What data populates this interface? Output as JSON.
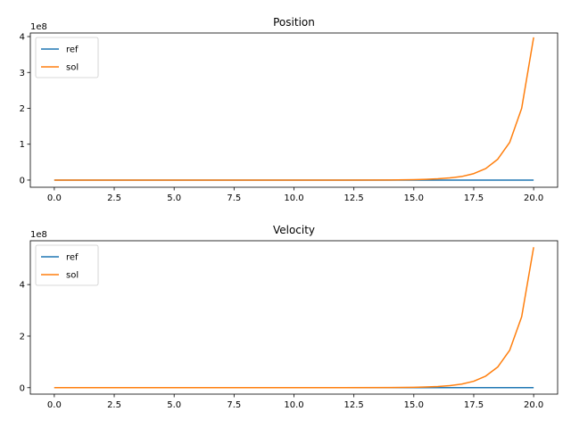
{
  "chart_data": [
    {
      "type": "line",
      "title": "Position",
      "xlabel": "",
      "ylabel": "",
      "offset_text": "1e8",
      "xlim": [
        -1,
        21
      ],
      "ylim": [
        -0.2,
        4.1
      ],
      "xticks": [
        0,
        2.5,
        5,
        7.5,
        10,
        12.5,
        15,
        17.5,
        20
      ],
      "xtick_labels": [
        "0.0",
        "2.5",
        "5.0",
        "7.5",
        "10.0",
        "12.5",
        "15.0",
        "17.5",
        "20.0"
      ],
      "yticks": [
        0,
        1,
        2,
        3,
        4
      ],
      "ytick_labels": [
        "0",
        "1",
        "2",
        "3",
        "4"
      ],
      "grid": false,
      "legend_position": "upper-left",
      "series": [
        {
          "name": "ref",
          "color": "#1f77b4",
          "x": [
            0,
            2,
            4,
            6,
            8,
            10,
            12,
            14,
            15,
            16,
            17,
            18,
            19,
            20
          ],
          "y": [
            0,
            0,
            0,
            0,
            0,
            0,
            0,
            0,
            0,
            0,
            0,
            0,
            0,
            0
          ]
        },
        {
          "name": "sol",
          "color": "#ff7f0e",
          "x": [
            0,
            2,
            4,
            6,
            8,
            10,
            12,
            14,
            15,
            15.5,
            16,
            16.5,
            17,
            17.5,
            18,
            18.5,
            19,
            19.5,
            20
          ],
          "y": [
            0,
            0,
            0,
            0,
            0,
            0,
            0,
            0.003,
            0.01,
            0.02,
            0.035,
            0.06,
            0.1,
            0.18,
            0.32,
            0.58,
            1.05,
            2.0,
            3.98
          ]
        }
      ]
    },
    {
      "type": "line",
      "title": "Velocity",
      "xlabel": "",
      "ylabel": "",
      "offset_text": "1e8",
      "xlim": [
        -1,
        21
      ],
      "ylim": [
        -0.25,
        5.7
      ],
      "xticks": [
        0,
        2.5,
        5,
        7.5,
        10,
        12.5,
        15,
        17.5,
        20
      ],
      "xtick_labels": [
        "0.0",
        "2.5",
        "5.0",
        "7.5",
        "10.0",
        "12.5",
        "15.0",
        "17.5",
        "20.0"
      ],
      "yticks": [
        0,
        2,
        4
      ],
      "ytick_labels": [
        "0",
        "2",
        "4"
      ],
      "grid": false,
      "legend_position": "upper-left",
      "series": [
        {
          "name": "ref",
          "color": "#1f77b4",
          "x": [
            0,
            2,
            4,
            6,
            8,
            10,
            12,
            14,
            15,
            16,
            17,
            18,
            19,
            20
          ],
          "y": [
            0,
            0,
            0,
            0,
            0,
            0,
            0,
            0,
            0,
            0,
            0,
            0,
            0,
            0
          ]
        },
        {
          "name": "sol",
          "color": "#ff7f0e",
          "x": [
            0,
            2,
            4,
            6,
            8,
            10,
            12,
            14,
            15,
            15.5,
            16,
            16.5,
            17,
            17.5,
            18,
            18.5,
            19,
            19.5,
            20
          ],
          "y": [
            0,
            0,
            0,
            0,
            0,
            0,
            0,
            0.004,
            0.013,
            0.025,
            0.045,
            0.08,
            0.14,
            0.25,
            0.45,
            0.8,
            1.45,
            2.75,
            5.45
          ]
        }
      ]
    }
  ]
}
